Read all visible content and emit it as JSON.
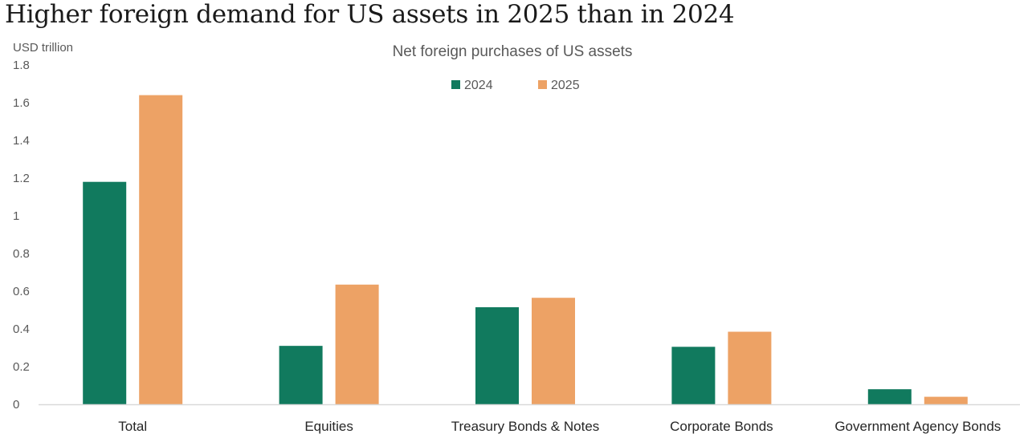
{
  "headline": "Higher foreign demand for US assets in 2025 than in 2024",
  "colors": {
    "series_2024": "#117a5e",
    "series_2025": "#eda265",
    "axis": "#d9d9d9"
  },
  "chart_data": {
    "type": "bar",
    "title": "Net foreign purchases of US assets",
    "ylabel": "USD trillion",
    "xlabel": "",
    "ylim": [
      0,
      1.8
    ],
    "yticks": [
      0,
      0.2,
      0.4,
      0.6,
      0.8,
      1,
      1.2,
      1.4,
      1.6,
      1.8
    ],
    "categories": [
      "Total",
      "Equities",
      "Treasury Bonds & Notes",
      "Corporate Bonds",
      "Government Agency Bonds"
    ],
    "legend_position": "top-center",
    "grid": false,
    "series": [
      {
        "name": "2024",
        "values": [
          1.18,
          0.31,
          0.515,
          0.305,
          0.08
        ]
      },
      {
        "name": "2025",
        "values": [
          1.64,
          0.635,
          0.565,
          0.385,
          0.04
        ]
      }
    ]
  }
}
